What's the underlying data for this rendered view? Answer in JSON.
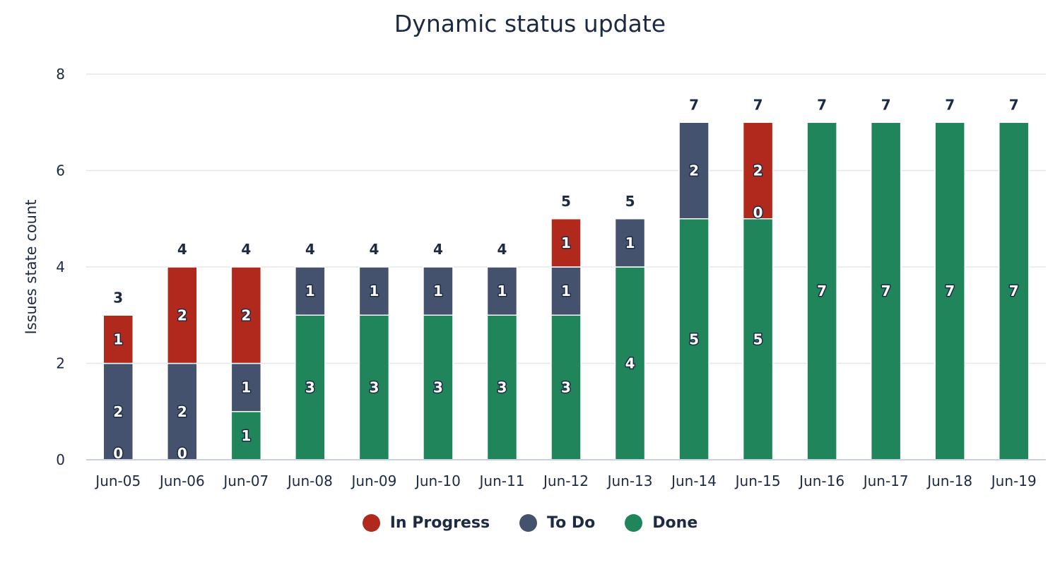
{
  "chart_data": {
    "type": "bar",
    "stacked": true,
    "title": "Dynamic status update",
    "xlabel": "",
    "ylabel": "Issues state count",
    "ylim": [
      0,
      8
    ],
    "yticks": [
      0,
      2,
      4,
      6,
      8
    ],
    "grid": true,
    "legend_position": "bottom",
    "categories": [
      "Jun-05",
      "Jun-06",
      "Jun-07",
      "Jun-08",
      "Jun-09",
      "Jun-10",
      "Jun-11",
      "Jun-12",
      "Jun-13",
      "Jun-14",
      "Jun-15",
      "Jun-16",
      "Jun-17",
      "Jun-18",
      "Jun-19"
    ],
    "series": [
      {
        "name": "In Progress",
        "color": "#b0291c",
        "values": [
          1,
          2,
          2,
          null,
          null,
          null,
          null,
          1,
          null,
          null,
          2,
          null,
          null,
          null,
          null
        ]
      },
      {
        "name": "To Do",
        "color": "#44526e",
        "values": [
          2,
          2,
          1,
          1,
          1,
          1,
          1,
          1,
          1,
          2,
          0,
          null,
          null,
          null,
          null
        ]
      },
      {
        "name": "Done",
        "color": "#20855a",
        "values": [
          0,
          0,
          1,
          3,
          3,
          3,
          3,
          3,
          4,
          5,
          5,
          7,
          7,
          7,
          7
        ]
      }
    ],
    "totals": [
      3,
      4,
      4,
      4,
      4,
      4,
      4,
      5,
      5,
      7,
      7,
      7,
      7,
      7,
      7
    ]
  }
}
